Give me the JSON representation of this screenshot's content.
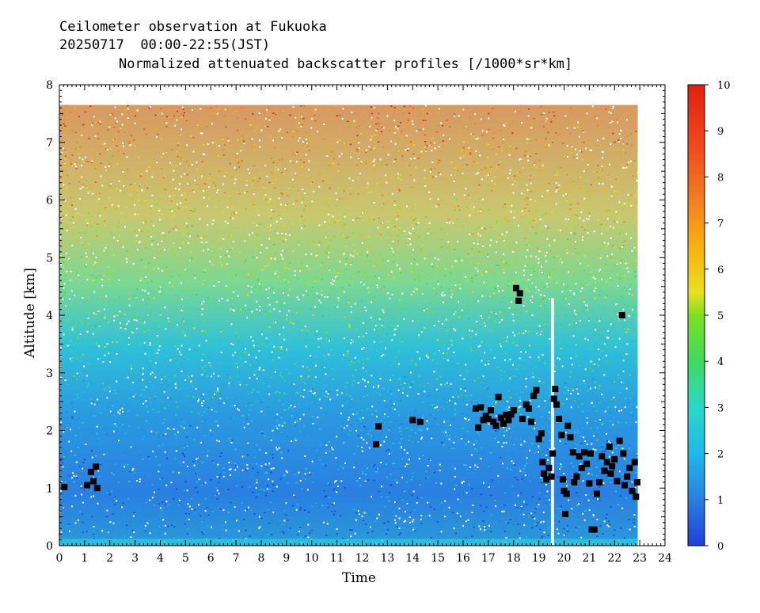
{
  "header": {
    "line1": "Ceilometer observation at Fukuoka",
    "line2": "20250717  00:00-22:55(JST)",
    "line3": "Normalized attenuated backscatter profiles [/1000*sr*km]"
  },
  "chart_data": {
    "type": "heatmap",
    "xlabel": "Time",
    "ylabel": "Altitude [km]",
    "xlim": [
      0,
      24
    ],
    "ylim": [
      0,
      8
    ],
    "x_ticks": [
      "0",
      "1",
      "2",
      "3",
      "4",
      "5",
      "6",
      "7",
      "8",
      "9",
      "10",
      "11",
      "12",
      "13",
      "14",
      "15",
      "16",
      "17",
      "18",
      "19",
      "20",
      "21",
      "22",
      "23",
      "24"
    ],
    "y_ticks": [
      "0",
      "1",
      "2",
      "3",
      "4",
      "5",
      "6",
      "7",
      "8"
    ],
    "data_extent": {
      "time_end": 22.92,
      "altitude_top": 7.65
    },
    "colorbar": {
      "range": [
        0,
        10
      ],
      "ticks": [
        "0",
        "1",
        "2",
        "3",
        "4",
        "5",
        "6",
        "7",
        "8",
        "9",
        "10"
      ],
      "colors": [
        "#1f3fd9",
        "#2a7fe0",
        "#1fb8e8",
        "#2ad8c8",
        "#3fd860",
        "#7ee020",
        "#e8e020",
        "#f8b010",
        "#f08020",
        "#f05020",
        "#e02010"
      ]
    },
    "cloud_base_points": [
      {
        "t": 0.2,
        "h": 1.02
      },
      {
        "t": 1.1,
        "h": 1.05
      },
      {
        "t": 1.25,
        "h": 1.28
      },
      {
        "t": 1.35,
        "h": 1.12
      },
      {
        "t": 1.45,
        "h": 1.37
      },
      {
        "t": 1.5,
        "h": 1.0
      },
      {
        "t": 12.55,
        "h": 1.76
      },
      {
        "t": 12.65,
        "h": 2.07
      },
      {
        "t": 14.0,
        "h": 2.18
      },
      {
        "t": 14.3,
        "h": 2.15
      },
      {
        "t": 16.5,
        "h": 2.38
      },
      {
        "t": 16.6,
        "h": 2.05
      },
      {
        "t": 16.7,
        "h": 2.4
      },
      {
        "t": 16.8,
        "h": 2.18
      },
      {
        "t": 16.9,
        "h": 2.25
      },
      {
        "t": 17.0,
        "h": 2.2
      },
      {
        "t": 17.1,
        "h": 2.35
      },
      {
        "t": 17.2,
        "h": 2.15
      },
      {
        "t": 17.3,
        "h": 2.08
      },
      {
        "t": 17.4,
        "h": 2.58
      },
      {
        "t": 17.5,
        "h": 2.22
      },
      {
        "t": 17.6,
        "h": 2.12
      },
      {
        "t": 17.7,
        "h": 2.27
      },
      {
        "t": 17.8,
        "h": 2.18
      },
      {
        "t": 17.9,
        "h": 2.28
      },
      {
        "t": 18.0,
        "h": 2.35
      },
      {
        "t": 18.1,
        "h": 4.47
      },
      {
        "t": 18.2,
        "h": 4.25
      },
      {
        "t": 18.25,
        "h": 4.38
      },
      {
        "t": 18.35,
        "h": 2.2
      },
      {
        "t": 18.5,
        "h": 2.45
      },
      {
        "t": 18.6,
        "h": 2.38
      },
      {
        "t": 18.7,
        "h": 2.15
      },
      {
        "t": 18.8,
        "h": 2.6
      },
      {
        "t": 18.9,
        "h": 2.7
      },
      {
        "t": 19.0,
        "h": 1.85
      },
      {
        "t": 19.1,
        "h": 1.95
      },
      {
        "t": 19.15,
        "h": 1.45
      },
      {
        "t": 19.2,
        "h": 1.25
      },
      {
        "t": 19.3,
        "h": 1.15
      },
      {
        "t": 19.4,
        "h": 1.35
      },
      {
        "t": 19.5,
        "h": 1.2
      },
      {
        "t": 19.55,
        "h": 1.6
      },
      {
        "t": 19.6,
        "h": 2.55
      },
      {
        "t": 19.65,
        "h": 2.72
      },
      {
        "t": 19.7,
        "h": 2.45
      },
      {
        "t": 19.8,
        "h": 2.2
      },
      {
        "t": 19.9,
        "h": 1.92
      },
      {
        "t": 19.95,
        "h": 1.15
      },
      {
        "t": 20.0,
        "h": 0.95
      },
      {
        "t": 20.05,
        "h": 0.55
      },
      {
        "t": 20.1,
        "h": 0.9
      },
      {
        "t": 20.15,
        "h": 2.08
      },
      {
        "t": 20.25,
        "h": 1.88
      },
      {
        "t": 20.35,
        "h": 1.62
      },
      {
        "t": 20.4,
        "h": 1.1
      },
      {
        "t": 20.5,
        "h": 1.2
      },
      {
        "t": 20.6,
        "h": 1.55
      },
      {
        "t": 20.7,
        "h": 1.35
      },
      {
        "t": 20.8,
        "h": 1.62
      },
      {
        "t": 20.9,
        "h": 1.42
      },
      {
        "t": 21.0,
        "h": 1.08
      },
      {
        "t": 21.05,
        "h": 1.6
      },
      {
        "t": 21.1,
        "h": 0.28
      },
      {
        "t": 21.2,
        "h": 0.28
      },
      {
        "t": 21.3,
        "h": 0.9
      },
      {
        "t": 21.4,
        "h": 1.1
      },
      {
        "t": 21.5,
        "h": 1.55
      },
      {
        "t": 21.6,
        "h": 1.3
      },
      {
        "t": 21.7,
        "h": 1.45
      },
      {
        "t": 21.8,
        "h": 1.72
      },
      {
        "t": 21.85,
        "h": 1.25
      },
      {
        "t": 21.9,
        "h": 1.38
      },
      {
        "t": 22.0,
        "h": 1.5
      },
      {
        "t": 22.1,
        "h": 1.12
      },
      {
        "t": 22.2,
        "h": 1.82
      },
      {
        "t": 22.3,
        "h": 4.0
      },
      {
        "t": 22.35,
        "h": 1.6
      },
      {
        "t": 22.4,
        "h": 1.05
      },
      {
        "t": 22.5,
        "h": 1.2
      },
      {
        "t": 22.6,
        "h": 1.35
      },
      {
        "t": 22.7,
        "h": 0.95
      },
      {
        "t": 22.8,
        "h": 1.45
      },
      {
        "t": 22.85,
        "h": 0.85
      },
      {
        "t": 22.9,
        "h": 1.1
      }
    ]
  }
}
